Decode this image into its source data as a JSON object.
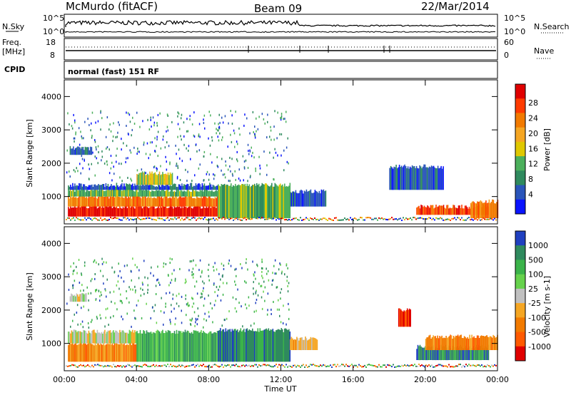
{
  "header": {
    "station": "McMurdo (fitACF)",
    "beam": "Beam 09",
    "date": "22/Mar/2014"
  },
  "summary_panel": {
    "left_top_label": "N.Sky",
    "left_freq_label": "Freq.",
    "left_freq_unit": "[MHz]",
    "left_cpid_label": "CPID",
    "right_top_label": "N.Search",
    "right_nave_label": "Nave",
    "noise_ticks": [
      "10^5",
      "10^0"
    ],
    "freq_ticks": [
      "18",
      "8"
    ],
    "nave_ticks": [
      "60",
      "0"
    ],
    "cpid_text": "normal (fast) 151 RF"
  },
  "colors": {
    "power": [
      "#0a14ff",
      "#2a55ba",
      "#2f8a5e",
      "#4cb05c",
      "#e0c800",
      "#f5a623",
      "#f27a00",
      "#ff3b00",
      "#e00000"
    ],
    "velocity": [
      "#2040c0",
      "#2f8a5e",
      "#3bb34a",
      "#66d24c",
      "#c0c0c0",
      "#f5a623",
      "#f27a00",
      "#ff5a00",
      "#e00000"
    ]
  },
  "chart_data": [
    {
      "type": "heatmap",
      "panel": "power",
      "ylabel": "Slant Range [km]",
      "xlabel": "",
      "ylim": [
        180,
        4500
      ],
      "yticks": [
        "1000",
        "2000",
        "3000",
        "4000"
      ],
      "xticks": [
        "00:00",
        "04:00",
        "08:00",
        "12:00",
        "16:00",
        "20:00",
        "00:00"
      ],
      "colorbar_label": "Power [dB]",
      "colorbar_ticks": [
        "4",
        "8",
        "12",
        "16",
        "20",
        "24",
        "28"
      ],
      "bands": [
        {
          "x0": 0.2,
          "x1": 8.5,
          "y0": 400,
          "y1": 700,
          "level": 8
        },
        {
          "x0": 0.2,
          "x1": 8.5,
          "y0": 700,
          "y1": 1000,
          "level": 6
        },
        {
          "x0": 0.2,
          "x1": 8.5,
          "y0": 1000,
          "y1": 1200,
          "level": 3
        },
        {
          "x0": 0.2,
          "x1": 8.5,
          "y0": 1200,
          "y1": 1350,
          "level": 1
        },
        {
          "x0": 8.5,
          "x1": 12.5,
          "y0": 350,
          "y1": 1350,
          "level": 3
        },
        {
          "x0": 12.5,
          "x1": 14.5,
          "y0": 700,
          "y1": 1150,
          "level": 1
        },
        {
          "x0": 19.5,
          "x1": 23.5,
          "y0": 450,
          "y1": 700,
          "level": 7
        },
        {
          "x0": 22.5,
          "x1": 24.0,
          "y0": 350,
          "y1": 850,
          "level": 6
        },
        {
          "x0": 18.0,
          "x1": 21.0,
          "y0": 1200,
          "y1": 1900,
          "level": 1
        },
        {
          "x0": 0.3,
          "x1": 1.5,
          "y0": 2250,
          "y1": 2450,
          "level": 1
        },
        {
          "x0": 4.0,
          "x1": 6.0,
          "y0": 1350,
          "y1": 1700,
          "level": 4
        }
      ],
      "scatter_y_range": [
        1500,
        3600
      ],
      "scatter_x_range": [
        0.1,
        12.5
      ]
    },
    {
      "type": "heatmap",
      "panel": "velocity",
      "ylabel": "Slant Range [km]",
      "xlabel": "Time UT",
      "ylim": [
        180,
        4500
      ],
      "yticks": [
        "1000",
        "2000",
        "3000",
        "4000"
      ],
      "xticks": [
        "00:00",
        "04:00",
        "08:00",
        "12:00",
        "16:00",
        "20:00",
        "00:00"
      ],
      "colorbar_label": "Velocity [m s-1]",
      "colorbar_ticks": [
        "1000",
        "500",
        "100",
        "25",
        "-25",
        "-100",
        "-500",
        "-1000"
      ],
      "bands": [
        {
          "x0": 0.2,
          "x1": 4.0,
          "y0": 450,
          "y1": 1000,
          "level": 6
        },
        {
          "x0": 0.2,
          "x1": 4.0,
          "y0": 1000,
          "y1": 1350,
          "level": 4
        },
        {
          "x0": 4.0,
          "x1": 8.5,
          "y0": 450,
          "y1": 1350,
          "level": 2
        },
        {
          "x0": 8.5,
          "x1": 12.5,
          "y0": 450,
          "y1": 1400,
          "level": 1
        },
        {
          "x0": 12.5,
          "x1": 14.0,
          "y0": 800,
          "y1": 1150,
          "level": 5
        },
        {
          "x0": 19.5,
          "x1": 23.5,
          "y0": 500,
          "y1": 900,
          "level": 1
        },
        {
          "x0": 20.0,
          "x1": 24.0,
          "y0": 800,
          "y1": 1200,
          "level": 6
        },
        {
          "x0": 18.5,
          "x1": 19.2,
          "y0": 1500,
          "y1": 2000,
          "level": 8
        },
        {
          "x0": 0.3,
          "x1": 1.2,
          "y0": 2250,
          "y1": 2450,
          "level": 4
        }
      ],
      "scatter_y_range": [
        1500,
        3600
      ],
      "scatter_x_range": [
        0.1,
        12.5
      ]
    }
  ]
}
